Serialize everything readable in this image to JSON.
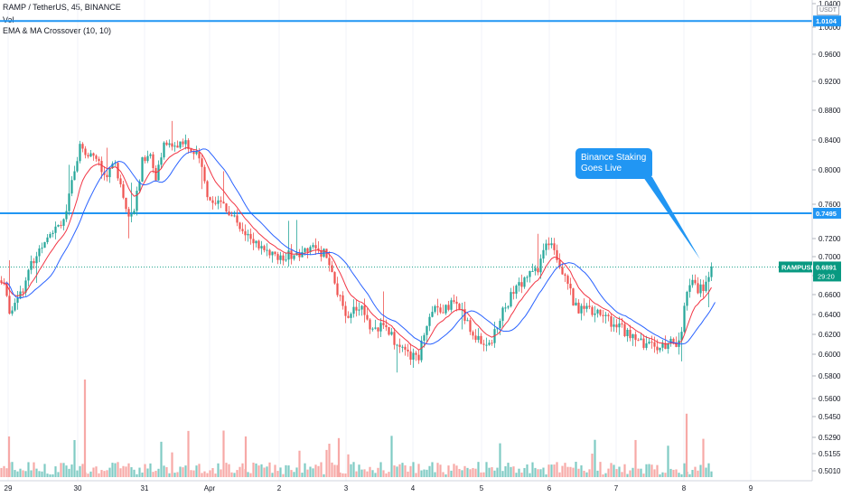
{
  "header": {
    "symbol_line": "RAMP / TetherUS, 45, BINANCE",
    "vol_label": "Vol",
    "indicator_label": "EMA & MA Crossover (10, 10)"
  },
  "price_scale": {
    "currency": "USDT",
    "ticks": [
      "1.0400",
      "1.0000",
      "0.9600",
      "0.9200",
      "0.8800",
      "0.8400",
      "0.8000",
      "0.7600",
      "0.7200",
      "0.7000",
      "0.6800",
      "0.6600",
      "0.6400",
      "0.6200",
      "0.6000",
      "0.5800",
      "0.5600",
      "0.5450",
      "0.5290",
      "0.5155",
      "0.5010"
    ],
    "tick_values": [
      1.04,
      1.0,
      0.96,
      0.92,
      0.88,
      0.84,
      0.8,
      0.76,
      0.72,
      0.7,
      0.68,
      0.66,
      0.64,
      0.62,
      0.6,
      0.58,
      0.56,
      0.545,
      0.529,
      0.5155,
      0.501
    ]
  },
  "price_tags": [
    {
      "label": "1.0104",
      "value": 1.0104,
      "color": "#2196f3"
    },
    {
      "label": "0.7495",
      "value": 0.7495,
      "color": "#2196f3"
    }
  ],
  "last_price": {
    "symbol": "RAMPUSDT",
    "value_label": "0.6891",
    "value": 0.6891,
    "countdown": "29:20",
    "color": "#089981"
  },
  "annotation": {
    "line1": "Binance Staking",
    "line2": "Goes Live"
  },
  "chart_data": {
    "type": "candlestick",
    "x_ticks": [
      "29",
      "30",
      "31",
      "Apr",
      "2",
      "3",
      "4",
      "5",
      "6",
      "7",
      "8",
      "9"
    ],
    "horizontal_levels": [
      1.0104,
      0.7495
    ],
    "last_price": 0.6891,
    "ylim": [
      0.49,
      1.045
    ],
    "colors": {
      "up": "#26a69a",
      "down": "#ef5350",
      "ema": "#f23645",
      "ma": "#2962ff",
      "level": "#2196f3",
      "vol_up": "#80cbc4",
      "vol_down": "#f7a9a7"
    },
    "price_path": [
      [
        0,
        0.675
      ],
      [
        6,
        0.665
      ],
      [
        12,
        0.64
      ],
      [
        18,
        0.66
      ],
      [
        26,
        0.668
      ],
      [
        34,
        0.69
      ],
      [
        42,
        0.705
      ],
      [
        52,
        0.725
      ],
      [
        62,
        0.735
      ],
      [
        72,
        0.745
      ],
      [
        80,
        0.785
      ],
      [
        88,
        0.83
      ],
      [
        96,
        0.82
      ],
      [
        104,
        0.825
      ],
      [
        110,
        0.805
      ],
      [
        118,
        0.795
      ],
      [
        126,
        0.81
      ],
      [
        134,
        0.78
      ],
      [
        142,
        0.75
      ],
      [
        150,
        0.76
      ],
      [
        158,
        0.815
      ],
      [
        166,
        0.82
      ],
      [
        172,
        0.79
      ],
      [
        180,
        0.83
      ],
      [
        188,
        0.838
      ],
      [
        196,
        0.826
      ],
      [
        204,
        0.84
      ],
      [
        210,
        0.83
      ],
      [
        218,
        0.82
      ],
      [
        224,
        0.8
      ],
      [
        230,
        0.77
      ],
      [
        238,
        0.765
      ],
      [
        246,
        0.76
      ],
      [
        254,
        0.75
      ],
      [
        262,
        0.74
      ],
      [
        270,
        0.73
      ],
      [
        278,
        0.72
      ],
      [
        286,
        0.712
      ],
      [
        294,
        0.705
      ],
      [
        302,
        0.7
      ],
      [
        310,
        0.698
      ],
      [
        318,
        0.7
      ],
      [
        326,
        0.705
      ],
      [
        334,
        0.703
      ],
      [
        342,
        0.712
      ],
      [
        350,
        0.708
      ],
      [
        358,
        0.705
      ],
      [
        364,
        0.69
      ],
      [
        370,
        0.67
      ],
      [
        378,
        0.65
      ],
      [
        386,
        0.64
      ],
      [
        394,
        0.65
      ],
      [
        402,
        0.645
      ],
      [
        410,
        0.63
      ],
      [
        418,
        0.625
      ],
      [
        426,
        0.628
      ],
      [
        434,
        0.62
      ],
      [
        442,
        0.605
      ],
      [
        450,
        0.6
      ],
      [
        458,
        0.596
      ],
      [
        464,
        0.6
      ],
      [
        470,
        0.625
      ],
      [
        476,
        0.642
      ],
      [
        484,
        0.65
      ],
      [
        492,
        0.645
      ],
      [
        500,
        0.652
      ],
      [
        508,
        0.648
      ],
      [
        516,
        0.632
      ],
      [
        524,
        0.62
      ],
      [
        532,
        0.612
      ],
      [
        540,
        0.61
      ],
      [
        548,
        0.62
      ],
      [
        556,
        0.64
      ],
      [
        564,
        0.655
      ],
      [
        572,
        0.665
      ],
      [
        580,
        0.678
      ],
      [
        588,
        0.68
      ],
      [
        596,
        0.688
      ],
      [
        604,
        0.712
      ],
      [
        610,
        0.72
      ],
      [
        616,
        0.702
      ],
      [
        622,
        0.688
      ],
      [
        628,
        0.675
      ],
      [
        634,
        0.655
      ],
      [
        640,
        0.642
      ],
      [
        648,
        0.645
      ],
      [
        656,
        0.64
      ],
      [
        664,
        0.642
      ],
      [
        672,
        0.636
      ],
      [
        680,
        0.63
      ],
      [
        688,
        0.625
      ],
      [
        696,
        0.622
      ],
      [
        704,
        0.615
      ],
      [
        712,
        0.61
      ],
      [
        720,
        0.612
      ],
      [
        728,
        0.608
      ],
      [
        736,
        0.605
      ],
      [
        742,
        0.61
      ],
      [
        748,
        0.612
      ],
      [
        754,
        0.62
      ],
      [
        760,
        0.665
      ],
      [
        766,
        0.67
      ],
      [
        772,
        0.665
      ],
      [
        778,
        0.668
      ],
      [
        784,
        0.68
      ],
      [
        789,
        0.689
      ]
    ]
  }
}
